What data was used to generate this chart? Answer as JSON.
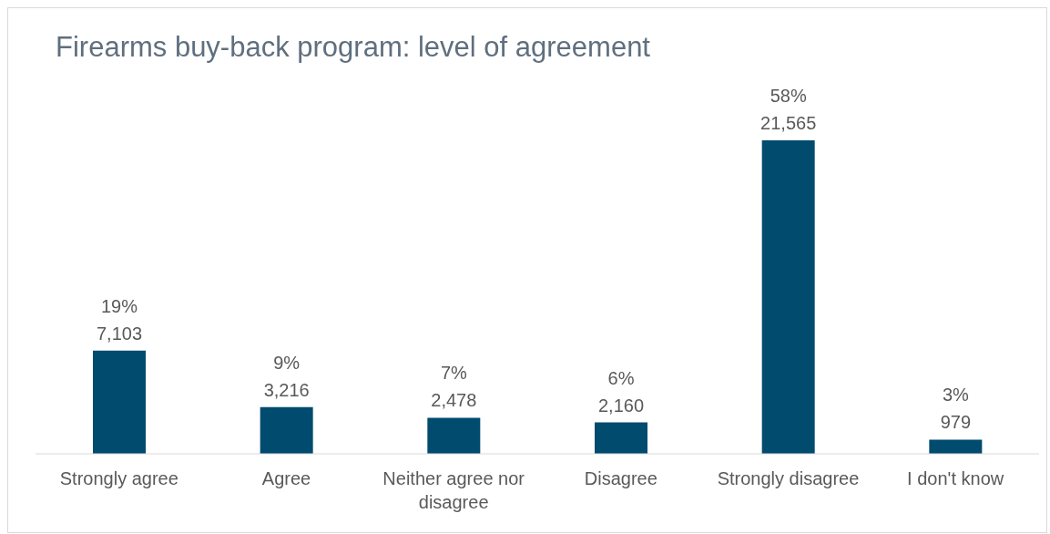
{
  "chart_data": {
    "type": "bar",
    "title": "Firearms buy-back program: level of agreement",
    "categories": [
      "Strongly agree",
      "Agree",
      "Neither agree nor disagree",
      "Disagree",
      "Strongly disagree",
      "I don't know"
    ],
    "values": [
      7103,
      3216,
      2478,
      2160,
      21565,
      979
    ],
    "value_labels": [
      "19%\n7,103",
      "9%\n3,216",
      "7%\n2,478",
      "6%\n2,160",
      "58%\n21,565",
      "3%\n979"
    ],
    "color": "#004b6e",
    "grid": false,
    "legend": false
  }
}
